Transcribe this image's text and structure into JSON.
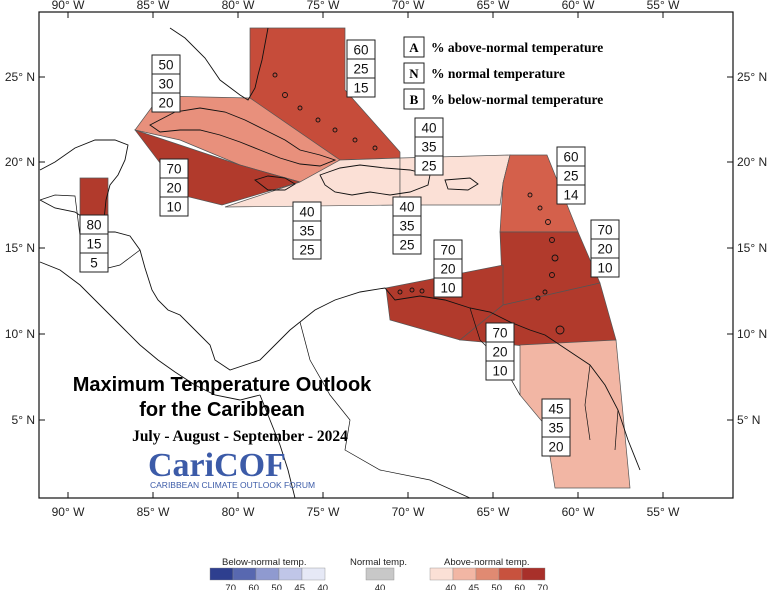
{
  "map": {
    "lon_ticks": [
      "90° W",
      "85° W",
      "80° W",
      "75° W",
      "70° W",
      "65° W",
      "60° W",
      "55° W"
    ],
    "lat_ticks": [
      "25° N",
      "20° N",
      "15° N",
      "10° N",
      "5° N"
    ]
  },
  "title": {
    "line1": "Maximum Temperature Outlook",
    "line2": "for the Caribbean",
    "period": "July - August - September - 2024"
  },
  "logo": {
    "name": "CariCOF",
    "tagline": "CARIBBEAN CLIMATE OUTLOOK FORUM"
  },
  "key": [
    {
      "letter": "A",
      "text": "% above-normal temperature"
    },
    {
      "letter": "N",
      "text": "% normal temperature"
    },
    {
      "letter": "B",
      "text": "% below-normal temperature"
    }
  ],
  "regions": [
    {
      "id": "bahamas",
      "values": [
        "60",
        "25",
        "15"
      ],
      "color": "#c64c3a"
    },
    {
      "id": "cuba",
      "values": [
        "50",
        "30",
        "20"
      ],
      "color": "#e8907c"
    },
    {
      "id": "jamaica-cayman",
      "values": [
        "70",
        "20",
        "10"
      ],
      "color": "#b13a2c"
    },
    {
      "id": "belize",
      "values": [
        "80",
        "15",
        "5"
      ],
      "color": "#b13a2c"
    },
    {
      "id": "hispaniola-west",
      "values": [
        "40",
        "35",
        "25"
      ],
      "color": "#fbe0d6"
    },
    {
      "id": "hispaniola-pr",
      "values": [
        "40",
        "35",
        "25"
      ],
      "color": "#fbe0d6"
    },
    {
      "id": "north-east",
      "values": [
        "40",
        "35",
        "25"
      ],
      "color": "#fbe0d6"
    },
    {
      "id": "leewards",
      "values": [
        "60",
        "25",
        "14"
      ],
      "color": "#d4604b"
    },
    {
      "id": "windwards",
      "values": [
        "70",
        "20",
        "10"
      ],
      "color": "#b13a2c"
    },
    {
      "id": "abc-islands",
      "values": [
        "70",
        "20",
        "10"
      ],
      "color": "#b13a2c"
    },
    {
      "id": "trinidad",
      "values": [
        "70",
        "20",
        "10"
      ],
      "color": "#b13a2c"
    },
    {
      "id": "guianas",
      "values": [
        "45",
        "35",
        "20"
      ],
      "color": "#f2b6a4"
    }
  ],
  "colorbar": {
    "below": {
      "title": "Below-normal temp.",
      "ticks": [
        "70",
        "60",
        "50",
        "45",
        "40"
      ],
      "colors": [
        "#2e3f8f",
        "#5868b0",
        "#8f9ad0",
        "#c0c6e8",
        "#e6e9f6"
      ]
    },
    "normal": {
      "title": "Normal temp.",
      "ticks": [
        "40"
      ],
      "colors": [
        "#c8c8c8"
      ]
    },
    "above": {
      "title": "Above-normal temp.",
      "ticks": [
        "40",
        "45",
        "50",
        "60",
        "70"
      ],
      "colors": [
        "#fbe0d6",
        "#f2b6a4",
        "#e08a72",
        "#c8523e",
        "#a8302a"
      ]
    }
  }
}
